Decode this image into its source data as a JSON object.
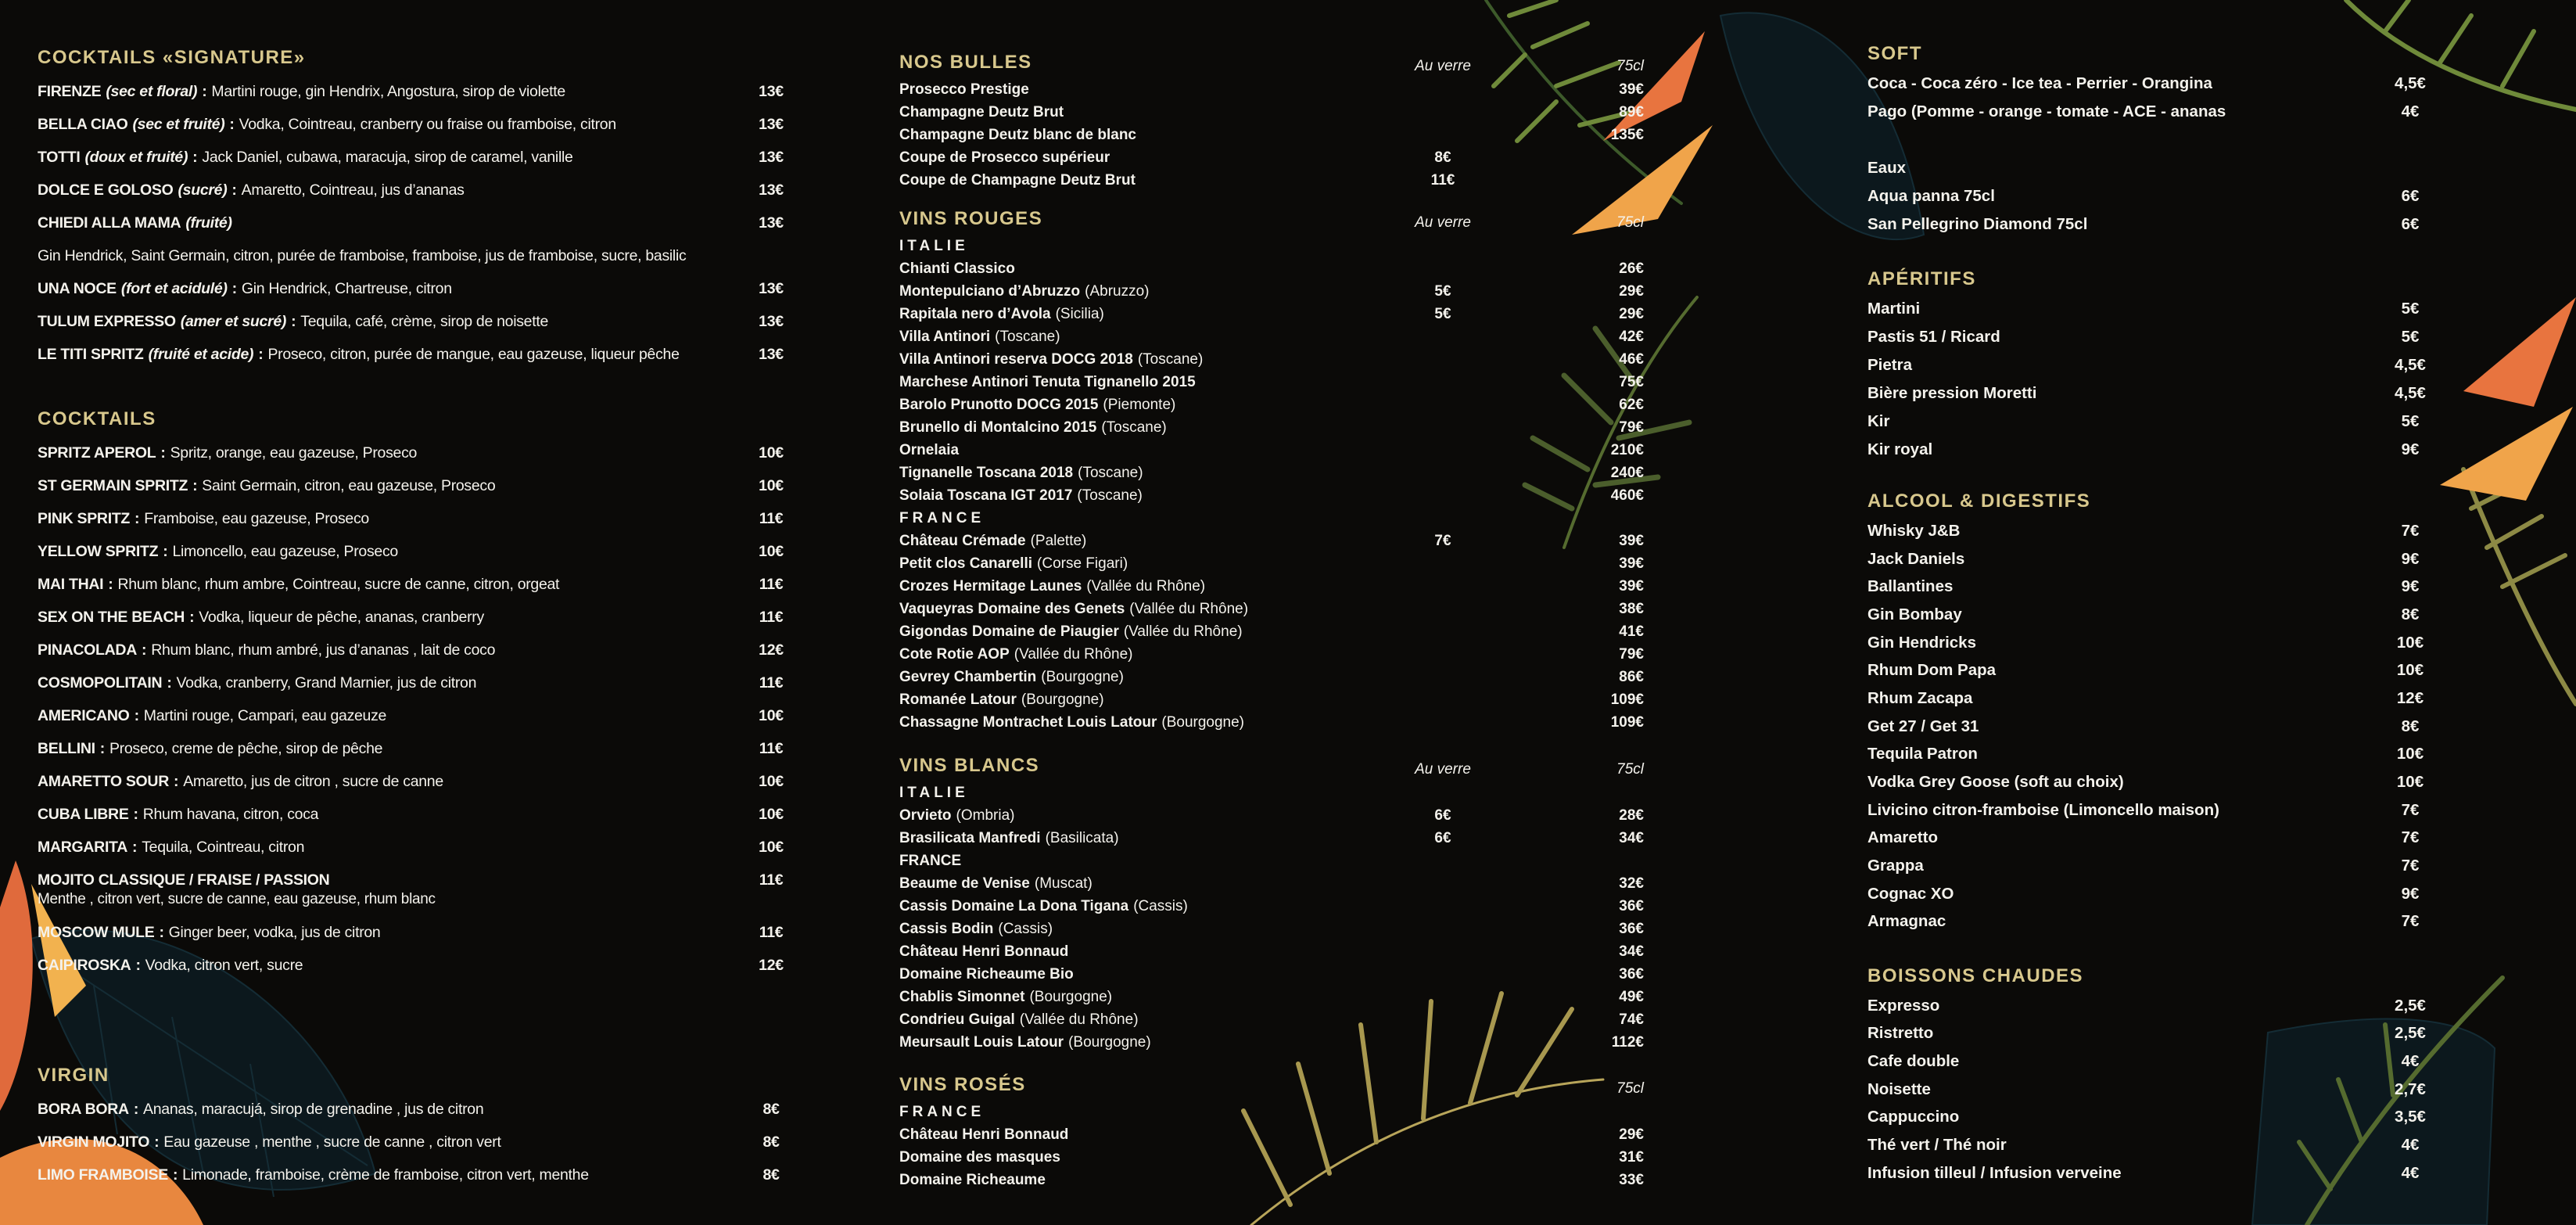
{
  "colors": {
    "background": "#0b0a08",
    "heading_gold": "#d8c88d",
    "text": "#f4f2ec",
    "accent_orange": "#e8743f"
  },
  "columns": [
    {
      "sections": [
        {
          "title": "COCKTAILS «SIGNATURE»",
          "items": [
            {
              "name": "FIRENZE",
              "note": "(sec et floral)",
              "sep": ":",
              "desc": "Martini rouge, gin Hendrix, Angostura, sirop de violette",
              "price": "13€"
            },
            {
              "name": "BELLA CIAO",
              "note": "(sec et fruité)",
              "sep": ":",
              "desc": "Vodka, Cointreau, cranberry ou fraise ou framboise, citron",
              "price": "13€"
            },
            {
              "name": "TOTTI",
              "note": "(doux et fruité)",
              "sep": ":",
              "desc": "Jack Daniel, cubawa, maracuja, sirop de caramel, vanille",
              "price": "13€"
            },
            {
              "name": "DOLCE E GOLOSO",
              "note": "(sucré)",
              "sep": ":",
              "desc": "Amaretto, Cointreau, jus d’ananas",
              "price": "13€"
            },
            {
              "name": "CHIEDI ALLA MAMA",
              "note": "(fruité)",
              "price": "13€"
            },
            {
              "line": "Gin Hendrick, Saint Germain, citron, purée de framboise, framboise, jus de framboise, sucre, basilic"
            },
            {
              "name": "UNA NOCE",
              "note": "(fort et acidulé)",
              "sep": ":",
              "desc": "Gin Hendrick, Chartreuse, citron",
              "price": "13€"
            },
            {
              "name": "TULUM EXPRESSO",
              "note": "(amer et sucré)",
              "sep": ":",
              "desc": "Tequila, café, crème, sirop de noisette",
              "price": "13€"
            },
            {
              "name": "LE TITI SPRITZ",
              "note": "(fruité et acide)",
              "sep": ":",
              "desc": "Proseco, citron, purée de mangue, eau gazeuse, liqueur pêche",
              "price": "13€"
            }
          ]
        },
        {
          "title": "COCKTAILS",
          "items": [
            {
              "name": "SPRITZ APEROL",
              "sep": ":",
              "desc": "Spritz, orange, eau gazeuse, Proseco",
              "price": "10€"
            },
            {
              "name": "ST GERMAIN SPRITZ",
              "sep": ":",
              "desc": "Saint Germain, citron, eau gazeuse, Proseco",
              "price": "10€"
            },
            {
              "name": "PINK SPRITZ",
              "sep": ":",
              "desc": "Framboise, eau gazeuse, Proseco",
              "price": "11€"
            },
            {
              "name": "YELLOW SPRITZ",
              "sep": ":",
              "desc": "Limoncello, eau gazeuse, Proseco",
              "price": "10€"
            },
            {
              "name": "MAI THAI",
              "sep": ":",
              "desc": "Rhum blanc, rhum ambre, Cointreau, sucre de canne, citron, orgeat",
              "price": "11€"
            },
            {
              "name": "SEX ON THE BEACH",
              "sep": ":",
              "desc": "Vodka, liqueur de pêche, ananas, cranberry",
              "price": "11€"
            },
            {
              "name": "PINACOLADA",
              "sep": ":",
              "desc": "Rhum blanc, rhum ambré, jus d’ananas , lait de coco",
              "price": "12€"
            },
            {
              "name": "COSMOPOLITAIN",
              "sep": ":",
              "desc": "Vodka, cranberry, Grand Marnier, jus de citron",
              "price": "11€"
            },
            {
              "name": "AMERICANO",
              "sep": ":",
              "desc": "Martini rouge, Campari, eau gazeuze",
              "price": "10€"
            },
            {
              "name": "BELLINI",
              "sep": ":",
              "desc": "Proseco, creme de pêche, sirop de pêche",
              "price": "11€"
            },
            {
              "name": "AMARETTO SOUR",
              "sep": ":",
              "desc": "Amaretto, jus de citron , sucre de canne",
              "price": "10€"
            },
            {
              "name": "CUBA LIBRE",
              "sep": ":",
              "desc": "Rhum havana, citron, coca",
              "price": "10€"
            },
            {
              "name": "MARGARITA",
              "sep": ":",
              "desc": "Tequila, Cointreau, citron",
              "price": "10€"
            },
            {
              "name": "MOJITO CLASSIQUE / FRAISE / PASSION",
              "sub": "Menthe , citron vert, sucre de canne, eau gazeuse, rhum blanc",
              "price": "11€"
            },
            {
              "name": "MOSCOW MULE",
              "sep": ":",
              "desc": "Ginger beer, vodka, jus de citron",
              "price": "11€"
            },
            {
              "name": "CAIPIROSKA",
              "sep": ":",
              "desc": "Vodka, citron vert, sucre",
              "price": "12€"
            }
          ]
        },
        {
          "title": "VIRGIN",
          "items": [
            {
              "name": "BORA BORA",
              "sep": ":",
              "desc": "Ananas, maracujá, sirop de grenadine , jus de citron",
              "price": "8€"
            },
            {
              "name": "VIRGIN MOJITO",
              "sep": ":",
              "desc": "Eau gazeuse , menthe , sucre de canne , citron vert",
              "price": "8€"
            },
            {
              "name": "LIMO FRAMBOISE",
              "sep": ":",
              "desc": "Limonade, framboise, crème de framboise, citron vert, menthe",
              "price": "8€"
            }
          ]
        }
      ]
    },
    {
      "sections": [
        {
          "title": "NOS BULLES",
          "glass_label": "Au verre",
          "bottle_label": "75cl",
          "items": [
            {
              "name": "Prosecco Prestige",
              "bottle": "39€"
            },
            {
              "name": "Champagne Deutz Brut",
              "bottle": "89€"
            },
            {
              "name": "Champagne Deutz blanc de blanc",
              "bottle": "135€"
            },
            {
              "name": "Coupe de Prosecco supérieur",
              "glass": "8€"
            },
            {
              "name": "Coupe de Champagne Deutz Brut",
              "glass": "11€"
            }
          ]
        },
        {
          "title": "VINS ROUGES",
          "glass_label": "Au verre",
          "bottle_label": "75cl",
          "items": [
            {
              "subhead": "ITALIE",
              "spaced": true
            },
            {
              "name": "Chianti Classico",
              "bottle": "26€"
            },
            {
              "name": "Montepulciano d’Abruzzo",
              "region": "(Abruzzo)",
              "glass": "5€",
              "bottle": "29€"
            },
            {
              "name": "Rapitala nero d’Avola",
              "region": "(Sicilia)",
              "glass": "5€",
              "bottle": "29€"
            },
            {
              "name": "Villa Antinori",
              "region": "(Toscane)",
              "bottle": "42€"
            },
            {
              "name": "Villa Antinori reserva DOCG 2018",
              "region": "(Toscane)",
              "bottle": "46€"
            },
            {
              "name": "Marchese Antinori Tenuta Tignanello 2015",
              "bottle": "75€"
            },
            {
              "name": "Barolo Prunotto DOCG 2015",
              "region": "(Piemonte)",
              "bottle": "62€"
            },
            {
              "name": "Brunello di Montalcino 2015",
              "region": "(Toscane)",
              "bottle": "79€"
            },
            {
              "name": "Ornelaia",
              "bottle": "210€"
            },
            {
              "name": "Tignanelle Toscana 2018",
              "region": "(Toscane)",
              "bottle": "240€"
            },
            {
              "name": "Solaia Toscana IGT 2017",
              "region": "(Toscane)",
              "bottle": "460€"
            },
            {
              "subhead": "FRANCE",
              "spaced": true
            },
            {
              "name": "Château Crémade",
              "region": "(Palette)",
              "glass": "7€",
              "bottle": "39€"
            },
            {
              "name": "Petit clos Canarelli",
              "region": "(Corse Figari)",
              "bottle": "39€"
            },
            {
              "name": "Crozes Hermitage Launes",
              "region": "(Vallée du Rhône)",
              "bottle": "39€"
            },
            {
              "name": "Vaqueyras Domaine des Genets",
              "region": "(Vallée du Rhône)",
              "bottle": "38€"
            },
            {
              "name": "Gigondas Domaine de Piaugier",
              "region": "(Vallée du Rhône)",
              "bottle": "41€"
            },
            {
              "name": "Cote Rotie AOP",
              "region": "(Vallée du Rhône)",
              "bottle": "79€"
            },
            {
              "name": "Gevrey Chambertin",
              "region": "(Bourgogne)",
              "bottle": "86€"
            },
            {
              "name": "Romanée Latour",
              "region": "(Bourgogne)",
              "bottle": "109€"
            },
            {
              "name": "Chassagne Montrachet Louis Latour",
              "region": "(Bourgogne)",
              "bottle": "109€"
            }
          ]
        },
        {
          "title": "VINS BLANCS",
          "glass_label": "Au verre",
          "bottle_label": "75cl",
          "items": [
            {
              "subhead": "ITALIE",
              "spaced": true
            },
            {
              "name": "Orvieto",
              "region": "(Ombria)",
              "glass": "6€",
              "bottle": "28€"
            },
            {
              "name": "Brasilicata Manfredi",
              "region": "(Basilicata)",
              "glass": "6€",
              "bottle": "34€"
            },
            {
              "subhead": "FRANCE",
              "spaced": false
            },
            {
              "name": "Beaume de Venise",
              "region": "(Muscat)",
              "bottle": "32€"
            },
            {
              "name": "Cassis Domaine La Dona Tigana",
              "region": "(Cassis)",
              "bottle": "36€"
            },
            {
              "name": "Cassis Bodin",
              "region": "(Cassis)",
              "bottle": "36€"
            },
            {
              "name": "Château Henri Bonnaud",
              "bottle": "34€"
            },
            {
              "name": "Domaine Richeaume Bio",
              "bottle": "36€"
            },
            {
              "name": "Chablis Simonnet",
              "region": "(Bourgogne)",
              "bottle": "49€"
            },
            {
              "name": "Condrieu Guigal",
              "region": "(Vallée du Rhône)",
              "bottle": "74€"
            },
            {
              "name": "Meursault Louis Latour",
              "region": "(Bourgogne)",
              "bottle": "112€"
            }
          ]
        },
        {
          "title": "VINS ROSÉS",
          "bottle_label": "75cl",
          "items": [
            {
              "subhead": "FRANCE",
              "spaced": true
            },
            {
              "name": "Château Henri Bonnaud",
              "bottle": "29€"
            },
            {
              "name": "Domaine des masques",
              "bottle": "31€"
            },
            {
              "name": "Domaine Richeaume",
              "bottle": "33€"
            }
          ]
        }
      ]
    },
    {
      "sections": [
        {
          "title": "SOFT",
          "items": [
            {
              "name": "Coca - Coca zéro - Ice tea - Perrier - Orangina",
              "price": "4,5€"
            },
            {
              "name": "Pago (Pomme - orange - tomate - ACE - ananas",
              "price": "4€"
            },
            {
              "blank": true
            },
            {
              "name": "Eaux"
            },
            {
              "name": "Aqua panna 75cl",
              "price": "6€"
            },
            {
              "name": "San Pellegrino Diamond 75cl",
              "price": "6€"
            }
          ]
        },
        {
          "title": "APÉRITIFS",
          "items": [
            {
              "name": "Martini",
              "price": "5€"
            },
            {
              "name": "Pastis 51 / Ricard",
              "price": "5€"
            },
            {
              "name": "Pietra",
              "price": "4,5€"
            },
            {
              "name": "Bière pression Moretti",
              "price": "4,5€"
            },
            {
              "name": "Kir",
              "price": "5€"
            },
            {
              "name": "Kir royal",
              "price": "9€"
            }
          ]
        },
        {
          "title": "ALCOOL & DIGESTIFS",
          "items": [
            {
              "name": "Whisky J&B",
              "price": "7€"
            },
            {
              "name": "Jack Daniels",
              "price": "9€"
            },
            {
              "name": "Ballantines",
              "price": "9€"
            },
            {
              "name": "Gin Bombay",
              "price": "8€"
            },
            {
              "name": "Gin Hendricks",
              "price": "10€"
            },
            {
              "name": "Rhum Dom Papa",
              "price": "10€"
            },
            {
              "name": "Rhum Zacapa",
              "price": "12€"
            },
            {
              "name": "Get 27 / Get 31",
              "price": "8€"
            },
            {
              "name": "Tequila Patron",
              "price": "10€"
            },
            {
              "name": "Vodka Grey Goose (soft au choix)",
              "price": "10€"
            },
            {
              "name": "Livicino citron-framboise  (Limoncello maison)",
              "price": "7€"
            },
            {
              "name": "Amaretto",
              "price": "7€"
            },
            {
              "name": "Grappa",
              "price": "7€"
            },
            {
              "name": "Cognac XO",
              "price": "9€"
            },
            {
              "name": "Armagnac",
              "price": "7€"
            }
          ]
        },
        {
          "title": "BOISSONS CHAUDES",
          "items": [
            {
              "name": "Expresso",
              "price": "2,5€"
            },
            {
              "name": "Ristretto",
              "price": "2,5€"
            },
            {
              "name": "Cafe double",
              "price": "4€"
            },
            {
              "name": "Noisette",
              "price": "2,7€"
            },
            {
              "name": "Cappuccino",
              "price": "3,5€"
            },
            {
              "name": "Thé vert / Thé noir",
              "price": "4€"
            },
            {
              "name": "Infusion tilleul / Infusion verveine",
              "price": "4€"
            }
          ]
        }
      ]
    }
  ]
}
